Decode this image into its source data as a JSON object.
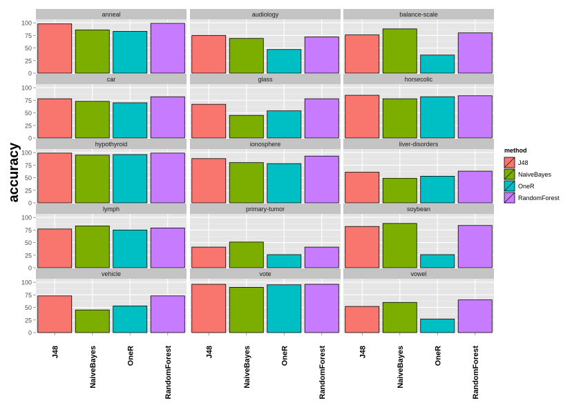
{
  "chart_data": {
    "type": "bar",
    "facet_layout": "wrap 3 columns",
    "ylabel": "accuracy",
    "ylim": [
      0,
      107
    ],
    "yticks": [
      0,
      25,
      50,
      75,
      100
    ],
    "grid": true,
    "categories": [
      "J48",
      "NaiveBayes",
      "OneR",
      "RandomForest"
    ],
    "colors": [
      "#F8766D",
      "#7CAE00",
      "#00BFC4",
      "#C77CFF"
    ],
    "legend": {
      "title": "method",
      "placement": "right",
      "entries": [
        "J48",
        "NaiveBayes",
        "OneR",
        "RandomForest"
      ]
    },
    "panels": [
      {
        "title": "anneal",
        "values": [
          98,
          86,
          83,
          99
        ]
      },
      {
        "title": "audiology",
        "values": [
          75,
          69,
          47,
          72
        ]
      },
      {
        "title": "balance-scale",
        "values": [
          76,
          88,
          36,
          80
        ]
      },
      {
        "title": "car",
        "values": [
          78,
          73,
          70,
          82
        ]
      },
      {
        "title": "glass",
        "values": [
          67,
          45,
          54,
          78
        ]
      },
      {
        "title": "horsecolic",
        "values": [
          85,
          78,
          82,
          84
        ]
      },
      {
        "title": "hypothyroid",
        "values": [
          99,
          95,
          96,
          99
        ]
      },
      {
        "title": "ionosphere",
        "values": [
          88,
          80,
          78,
          93
        ]
      },
      {
        "title": "liver-disorders",
        "values": [
          61,
          49,
          53,
          63
        ]
      },
      {
        "title": "lymph",
        "values": [
          77,
          83,
          75,
          79
        ]
      },
      {
        "title": "primary-tumor",
        "values": [
          41,
          51,
          26,
          41
        ]
      },
      {
        "title": "soybean",
        "values": [
          82,
          88,
          26,
          84
        ]
      },
      {
        "title": "vehicle",
        "values": [
          73,
          45,
          53,
          73
        ]
      },
      {
        "title": "vote",
        "values": [
          96,
          90,
          95,
          96
        ]
      },
      {
        "title": "vowel",
        "values": [
          52,
          60,
          27,
          65
        ]
      }
    ]
  }
}
